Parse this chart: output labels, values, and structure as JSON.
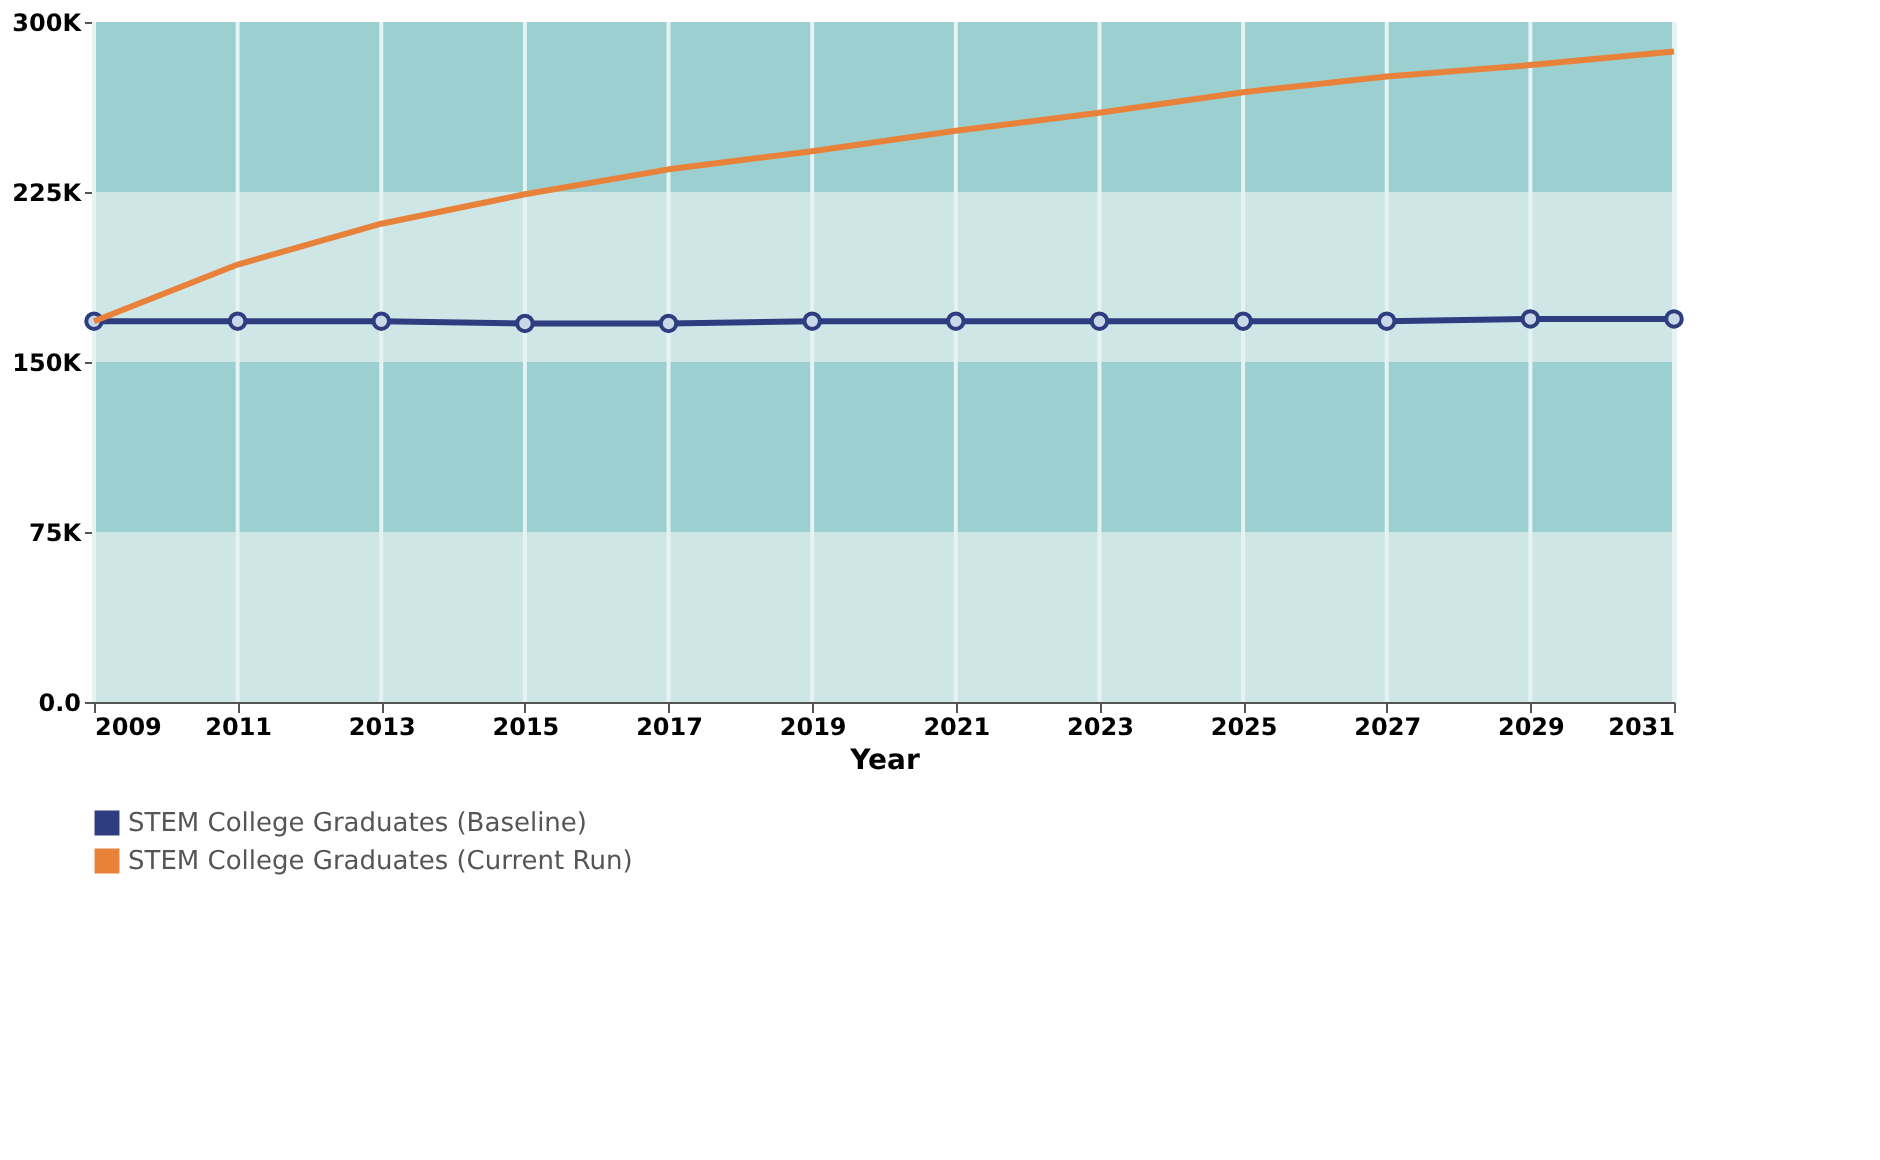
{
  "chart_data": {
    "type": "line",
    "xlabel": "Year",
    "x": [
      2009,
      2011,
      2013,
      2015,
      2017,
      2019,
      2021,
      2023,
      2025,
      2027,
      2029,
      2031
    ],
    "series": [
      {
        "name": "STEM College Graduates (Baseline)",
        "color": "#2e3d80",
        "marker": "circle",
        "values": [
          168000,
          168000,
          168000,
          167000,
          167000,
          168000,
          168000,
          168000,
          168000,
          168000,
          169000,
          169000
        ]
      },
      {
        "name": "STEM College Graduates (Current Run)",
        "color": "#e8823a",
        "marker": "none",
        "values": [
          168000,
          193000,
          211000,
          224000,
          235000,
          243000,
          252000,
          260000,
          269000,
          276000,
          281000,
          287000
        ]
      }
    ],
    "xlim": [
      2009,
      2031
    ],
    "xticks": [
      2009,
      2011,
      2013,
      2015,
      2017,
      2019,
      2021,
      2023,
      2025,
      2027,
      2029,
      2031
    ],
    "ylim": [
      0,
      300000
    ],
    "yticks": [
      {
        "value": 0,
        "label": "0.0"
      },
      {
        "value": 75000,
        "label": "75K"
      },
      {
        "value": 150000,
        "label": "150K"
      },
      {
        "value": 225000,
        "label": "225K"
      },
      {
        "value": 300000,
        "label": "300K"
      }
    ],
    "bands": [
      {
        "axis": "y",
        "from": 0,
        "to": 75000,
        "color": "#cfe6e7"
      },
      {
        "axis": "y",
        "from": 75000,
        "to": 150000,
        "color": "#9ccfd0"
      },
      {
        "axis": "y",
        "from": 150000,
        "to": 225000,
        "color": "#cfe6e7"
      },
      {
        "axis": "y",
        "from": 225000,
        "to": 300000,
        "color": "#9ccfd0"
      }
    ],
    "grid": "x",
    "legend": "bottom",
    "line_style": "solid"
  }
}
